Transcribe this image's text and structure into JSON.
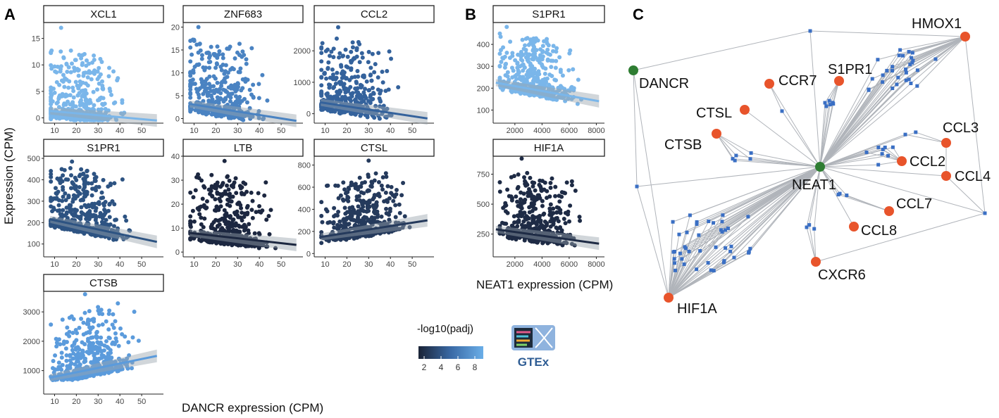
{
  "panel_labels": {
    "a": "A",
    "b": "B",
    "c": "C"
  },
  "axis_titles": {
    "y": "Expression (CPM)",
    "x_dancr": "DANCR expression (CPM)",
    "x_neat1": "NEAT1 expression (CPM)"
  },
  "legend": {
    "title": "-log10(padj)",
    "ticks": [
      "2",
      "4",
      "6",
      "8"
    ],
    "color_low": "#1a2336",
    "color_high": "#6aaee8"
  },
  "logo": {
    "text": "GTEx"
  },
  "colors": {
    "hub": "#2e7d32",
    "target": "#e8542b",
    "edge": "#b0b4ba",
    "node_small": "#3a6fc4"
  },
  "chart_data": [
    {
      "type": "scatter",
      "title": "XCL1",
      "xlim": [
        5,
        60
      ],
      "ylim": [
        -1,
        18
      ],
      "xticks": [
        "10",
        "20",
        "30",
        "40",
        "50"
      ],
      "yticks": [
        "0",
        "5",
        "10",
        "15"
      ],
      "ytick_values": [
        0,
        5,
        10,
        15
      ],
      "color": "#7ab6ea",
      "trend": [
        [
          8,
          1.3
        ],
        [
          57,
          -0.5
        ]
      ],
      "max_point": [
        13,
        17
      ],
      "n": 420,
      "peak_x": 18
    },
    {
      "type": "scatter",
      "title": "ZNF683",
      "xlim": [
        5,
        60
      ],
      "ylim": [
        -1,
        21
      ],
      "xticks": [
        "10",
        "20",
        "30",
        "40",
        "50"
      ],
      "yticks": [
        "0",
        "5",
        "10",
        "15",
        "20"
      ],
      "ytick_values": [
        0,
        5,
        10,
        15,
        20
      ],
      "color": "#4a83c2",
      "trend": [
        [
          8,
          3.2
        ],
        [
          57,
          -0.5
        ]
      ],
      "max_point": [
        12,
        20
      ],
      "n": 420,
      "peak_x": 18
    },
    {
      "type": "scatter",
      "title": "CCL2",
      "xlim": [
        5,
        60
      ],
      "ylim": [
        -300,
        2900
      ],
      "xticks": [
        "10",
        "20",
        "30",
        "40",
        "50"
      ],
      "yticks": [
        "0",
        "1000",
        "2000"
      ],
      "ytick_values": [
        0,
        1000,
        2000
      ],
      "color": "#34629c",
      "trend": [
        [
          8,
          360
        ],
        [
          57,
          -150
        ]
      ],
      "max_point": [
        16,
        2750
      ],
      "n": 420,
      "peak_x": 18
    },
    {
      "type": "scatter",
      "title": "S1PR1",
      "xlim": [
        5,
        60
      ],
      "ylim": [
        40,
        510
      ],
      "xticks": [
        "10",
        "20",
        "30",
        "40",
        "50"
      ],
      "yticks": [
        "100",
        "200",
        "300",
        "400",
        "500"
      ],
      "ytick_values": [
        100,
        200,
        300,
        400,
        500
      ],
      "color": "#2d5382",
      "trend": [
        [
          8,
          215
        ],
        [
          57,
          110
        ]
      ],
      "max_point": [
        18,
        485
      ],
      "n": 480,
      "peak_x": 20
    },
    {
      "type": "scatter",
      "title": "LTB",
      "xlim": [
        5,
        60
      ],
      "ylim": [
        -2,
        40
      ],
      "xticks": [
        "10",
        "20",
        "30",
        "40",
        "50"
      ],
      "yticks": [
        "0",
        "10",
        "20",
        "30",
        "40"
      ],
      "ytick_values": [
        0,
        10,
        20,
        30,
        40
      ],
      "color": "#1c2740",
      "trend": [
        [
          8,
          8
        ],
        [
          57,
          3
        ]
      ],
      "max_point": [
        24,
        38
      ],
      "n": 480,
      "peak_x": 22
    },
    {
      "type": "scatter",
      "title": "CTSL",
      "xlim": [
        5,
        60
      ],
      "ylim": [
        -30,
        880
      ],
      "xticks": [
        "10",
        "20",
        "30",
        "40",
        "50"
      ],
      "yticks": [
        "0",
        "200",
        "400",
        "600",
        "800"
      ],
      "ytick_values": [
        0,
        200,
        400,
        600,
        800
      ],
      "color": "#253a5c",
      "trend": [
        [
          8,
          150
        ],
        [
          57,
          300
        ]
      ],
      "max_point": [
        30,
        840
      ],
      "n": 480,
      "peak_x": 24
    },
    {
      "type": "scatter",
      "title": "CTSB",
      "xlim": [
        5,
        60
      ],
      "ylim": [
        200,
        3700
      ],
      "xticks": [
        "10",
        "20",
        "30",
        "40",
        "50"
      ],
      "yticks": [
        "1000",
        "2000",
        "3000"
      ],
      "ytick_values": [
        1000,
        2000,
        3000
      ],
      "color": "#5b9bdc",
      "trend": [
        [
          8,
          760
        ],
        [
          57,
          1500
        ]
      ],
      "max_point": [
        24,
        3600
      ],
      "n": 480,
      "peak_x": 24
    },
    {
      "type": "scatter",
      "title": "S1PR1",
      "xlim": [
        400,
        8600
      ],
      "ylim": [
        40,
        500
      ],
      "xticks": [
        "2000",
        "4000",
        "6000",
        "8000"
      ],
      "yticks": [
        "100",
        "200",
        "300",
        "400"
      ],
      "ytick_values": [
        100,
        200,
        300,
        400
      ],
      "color": "#7ab6ea",
      "trend": [
        [
          600,
          225
        ],
        [
          8200,
          140
        ]
      ],
      "max_point": [
        1400,
        480
      ],
      "n": 480,
      "peak_x": 3000
    },
    {
      "type": "scatter",
      "title": "HIF1A",
      "xlim": [
        400,
        8600
      ],
      "ylim": [
        60,
        900
      ],
      "xticks": [
        "2000",
        "4000",
        "6000",
        "8000"
      ],
      "yticks": [
        "250",
        "500",
        "750"
      ],
      "ytick_values": [
        250,
        500,
        750
      ],
      "color": "#1e2b45",
      "trend": [
        [
          600,
          290
        ],
        [
          8200,
          170
        ]
      ],
      "max_point": [
        2500,
        880
      ],
      "n": 480,
      "peak_x": 3000
    }
  ],
  "network": {
    "nodes": [
      {
        "label": "NEAT1",
        "kind": "hub"
      },
      {
        "label": "DANCR",
        "kind": "hub"
      },
      {
        "label": "HMOX1",
        "kind": "target"
      },
      {
        "label": "CCR7",
        "kind": "target"
      },
      {
        "label": "S1PR1",
        "kind": "target"
      },
      {
        "label": "CTSL",
        "kind": "target"
      },
      {
        "label": "CTSB",
        "kind": "target"
      },
      {
        "label": "CCL3",
        "kind": "target"
      },
      {
        "label": "CCL2",
        "kind": "target"
      },
      {
        "label": "CCL4",
        "kind": "target"
      },
      {
        "label": "CCL7",
        "kind": "target"
      },
      {
        "label": "CCL8",
        "kind": "target"
      },
      {
        "label": "CXCR6",
        "kind": "target"
      },
      {
        "label": "HIF1A",
        "kind": "target"
      }
    ]
  }
}
